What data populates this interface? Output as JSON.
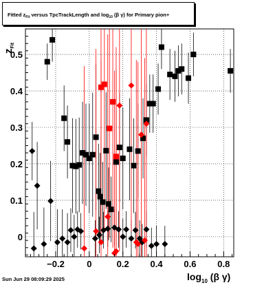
{
  "title": {
    "prefix": "Fitted  z",
    "sub": "Fit",
    "middle": "  versus TpcTrackLength and log",
    "sub2": "10",
    "suffix": "  (β  γ) for Primary pion+"
  },
  "footer": {
    "date": "Sun Jun 29 08:09:29 2025"
  },
  "axes": {
    "y_label": "z",
    "y_label_sub": "Fit",
    "x_label": "log",
    "x_label_sub": "10",
    "x_label_suffix": "(β γ)"
  },
  "chart_data": {
    "type": "scatter",
    "xlim": [
      -0.38,
      0.86
    ],
    "ylim": [
      -0.055,
      0.57
    ],
    "x_ticks": [
      -0.2,
      0,
      0.2,
      0.4,
      0.6,
      0.8
    ],
    "x_tick_labels": [
      "−0.2",
      "0",
      "0.2",
      "0.4",
      "0.6",
      "0.8"
    ],
    "y_ticks": [
      0,
      0.1,
      0.2,
      0.3,
      0.4,
      0.5
    ],
    "y_tick_labels": [
      "0",
      "0.1",
      "0.2",
      "0.3",
      "0.4",
      "0.5"
    ],
    "grid": true,
    "series": [
      {
        "marker": "square",
        "color": "#000000",
        "points": [
          {
            "x": -0.25,
            "y": 0.48,
            "err": 0.05
          },
          {
            "x": -0.22,
            "y": 0.54,
            "err": 0.06
          },
          {
            "x": -0.15,
            "y": 0.325,
            "err": 0.09
          },
          {
            "x": -0.13,
            "y": 0.26,
            "err": 0.1
          },
          {
            "x": -0.1,
            "y": 0.195,
            "err": 0.13
          },
          {
            "x": -0.08,
            "y": 0.193,
            "err": 0.13
          },
          {
            "x": -0.06,
            "y": 0.197,
            "err": 0.13
          },
          {
            "x": -0.04,
            "y": 0.23,
            "err": 0.14
          },
          {
            "x": -0.02,
            "y": 0.225,
            "err": 0.14
          },
          {
            "x": 0.0,
            "y": 0.215,
            "err": 0.15
          },
          {
            "x": 0.02,
            "y": 0.225,
            "err": 0.17
          },
          {
            "x": 0.04,
            "y": 0.273,
            "err": 0.2
          },
          {
            "x": 0.055,
            "y": 0.125,
            "err": 0.13
          },
          {
            "x": 0.065,
            "y": 0.11,
            "err": 0.12
          },
          {
            "x": 0.08,
            "y": 0.095,
            "err": 0.11
          },
          {
            "x": 0.1,
            "y": 0.236,
            "err": 0.16
          },
          {
            "x": 0.115,
            "y": 0.09,
            "err": 0.1
          },
          {
            "x": 0.13,
            "y": 0.075,
            "err": 0.09
          },
          {
            "x": 0.16,
            "y": 0.205,
            "err": 0.14
          },
          {
            "x": 0.18,
            "y": 0.245,
            "err": 0.15
          },
          {
            "x": 0.2,
            "y": 0.215,
            "err": 0.14
          },
          {
            "x": 0.24,
            "y": 0.24,
            "err": 0.14
          },
          {
            "x": 0.265,
            "y": 0.195,
            "err": 0.13
          },
          {
            "x": 0.29,
            "y": 0.235,
            "err": 0.13
          },
          {
            "x": 0.32,
            "y": 0.27,
            "err": 0.11
          },
          {
            "x": 0.34,
            "y": 0.32,
            "err": 0.1
          },
          {
            "x": 0.36,
            "y": 0.365,
            "err": 0.08
          },
          {
            "x": 0.38,
            "y": 0.365,
            "err": 0.08
          },
          {
            "x": 0.41,
            "y": 0.405,
            "err": 0.07
          },
          {
            "x": 0.43,
            "y": 0.52,
            "err": 0.06
          },
          {
            "x": 0.48,
            "y": 0.445,
            "err": 0.07
          },
          {
            "x": 0.51,
            "y": 0.44,
            "err": 0.07
          },
          {
            "x": 0.53,
            "y": 0.455,
            "err": 0.07
          },
          {
            "x": 0.55,
            "y": 0.46,
            "err": 0.07
          },
          {
            "x": 0.59,
            "y": 0.435,
            "err": 0.07
          },
          {
            "x": 0.62,
            "y": 0.5,
            "err": 0.06
          },
          {
            "x": 0.84,
            "y": 0.455,
            "err": 0.06
          }
        ]
      },
      {
        "marker": "diamond",
        "color": "#000000",
        "points": [
          {
            "x": -0.34,
            "y": 0.235,
            "err": 0.08
          },
          {
            "x": -0.33,
            "y": -0.032,
            "err": 0.1
          },
          {
            "x": -0.31,
            "y": 0.14,
            "err": 0.12
          },
          {
            "x": -0.27,
            "y": -0.02,
            "err": 0.1
          },
          {
            "x": -0.23,
            "y": 0.098,
            "err": 0.11
          },
          {
            "x": -0.19,
            "y": -0.015,
            "err": 0.09
          },
          {
            "x": -0.16,
            "y": -0.005,
            "err": 0.08
          },
          {
            "x": -0.13,
            "y": -0.015,
            "err": 0.08
          },
          {
            "x": -0.11,
            "y": 0.018,
            "err": 0.06
          },
          {
            "x": -0.09,
            "y": 0.0,
            "err": 0.06
          },
          {
            "x": -0.07,
            "y": 0.02,
            "err": 0.05
          },
          {
            "x": -0.05,
            "y": 0.015,
            "err": 0.05
          },
          {
            "x": 0.035,
            "y": -0.005,
            "err": 0.05
          },
          {
            "x": 0.06,
            "y": 0.005,
            "err": 0.05
          },
          {
            "x": 0.085,
            "y": 0.018,
            "err": 0.05
          },
          {
            "x": 0.11,
            "y": 0.022,
            "err": 0.05
          },
          {
            "x": 0.15,
            "y": 0.025,
            "err": 0.05
          },
          {
            "x": 0.175,
            "y": 0.02,
            "err": 0.05
          },
          {
            "x": 0.2,
            "y": 0.0,
            "err": 0.05
          },
          {
            "x": 0.22,
            "y": 0.02,
            "err": 0.05
          },
          {
            "x": 0.25,
            "y": -0.005,
            "err": 0.05
          },
          {
            "x": 0.275,
            "y": 0.018,
            "err": 0.05
          },
          {
            "x": 0.3,
            "y": -0.005,
            "err": 0.05
          },
          {
            "x": 0.315,
            "y": -0.015,
            "err": 0.05
          },
          {
            "x": 0.34,
            "y": 0.02,
            "err": 0.05
          },
          {
            "x": 0.37,
            "y": -0.025,
            "err": 0.05
          },
          {
            "x": 0.4,
            "y": -0.02,
            "err": 0.05
          },
          {
            "x": 0.45,
            "y": -0.02,
            "err": 0.05
          }
        ]
      },
      {
        "marker": "square",
        "color": "#ff0000",
        "points": [
          {
            "x": 0.07,
            "y": 0.41,
            "err": 0.4
          },
          {
            "x": 0.09,
            "y": 0.418,
            "err": 0.4
          },
          {
            "x": 0.12,
            "y": 0.297,
            "err": 0.3
          },
          {
            "x": 0.14,
            "y": 0.37,
            "err": 0.4
          },
          {
            "x": 0.16,
            "y": 0.22,
            "err": 0.3
          }
        ]
      },
      {
        "marker": "diamond",
        "color": "#ff0000",
        "points": [
          {
            "x": -0.03,
            "y": -0.032,
            "err": 0.5
          },
          {
            "x": 0.11,
            "y": 0.055,
            "err": 0.5
          },
          {
            "x": 0.18,
            "y": 0.36,
            "err": 0.4
          },
          {
            "x": 0.25,
            "y": 0.415,
            "err": 0.4
          },
          {
            "x": 0.31,
            "y": 0.28,
            "err": 0.4
          },
          {
            "x": 0.34,
            "y": 0.31,
            "err": 0.4
          },
          {
            "x": 0.04,
            "y": 0.015,
            "err": 0.5
          },
          {
            "x": 0.07,
            "y": -0.015,
            "err": 0.5
          },
          {
            "x": 0.15,
            "y": -0.045,
            "err": 0.5
          },
          {
            "x": 0.16,
            "y": -0.04,
            "err": 0.5
          },
          {
            "x": 0.28,
            "y": -0.015,
            "err": 0.5
          },
          {
            "x": 0.29,
            "y": -0.02,
            "err": 0.5
          },
          {
            "x": 0.33,
            "y": -0.01,
            "err": 0.5
          }
        ]
      }
    ]
  }
}
